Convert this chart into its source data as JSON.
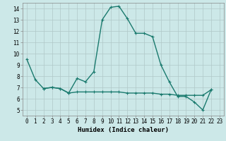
{
  "title": "",
  "xlabel": "Humidex (Indice chaleur)",
  "x": [
    0,
    1,
    2,
    3,
    4,
    5,
    6,
    7,
    8,
    9,
    10,
    11,
    12,
    13,
    14,
    15,
    16,
    17,
    18,
    19,
    20,
    21,
    22,
    23
  ],
  "line1_y": [
    9.5,
    7.7,
    6.9,
    7.0,
    6.9,
    6.5,
    7.8,
    7.5,
    8.4,
    13.0,
    14.1,
    14.2,
    13.1,
    11.8,
    11.8,
    11.5,
    9.0,
    7.5,
    6.2,
    6.2,
    5.7,
    5.0,
    6.8,
    null
  ],
  "line2_y": [
    null,
    null,
    6.9,
    7.0,
    6.9,
    6.5,
    6.6,
    6.6,
    6.6,
    6.6,
    6.6,
    6.6,
    6.5,
    6.5,
    6.5,
    6.5,
    6.4,
    6.4,
    6.3,
    6.3,
    6.3,
    6.3,
    6.8,
    null
  ],
  "line_color": "#1a7a6e",
  "bg_color": "#cce8e8",
  "grid_color": "#b0c8c8",
  "ylim": [
    4.5,
    14.5
  ],
  "xlim": [
    -0.5,
    23.5
  ],
  "yticks": [
    5,
    6,
    7,
    8,
    9,
    10,
    11,
    12,
    13,
    14
  ],
  "xticks": [
    0,
    1,
    2,
    3,
    4,
    5,
    6,
    7,
    8,
    9,
    10,
    11,
    12,
    13,
    14,
    15,
    16,
    17,
    18,
    19,
    20,
    21,
    22,
    23
  ],
  "tick_fontsize": 5.5,
  "xlabel_fontsize": 6.5
}
